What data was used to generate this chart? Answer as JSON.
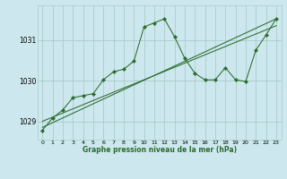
{
  "bg_color": "#cce8ee",
  "grid_color": "#aacccc",
  "line_color": "#2d6b2d",
  "xlabel": "Graphe pression niveau de la mer (hPa)",
  "ylim": [
    1028.55,
    1031.85
  ],
  "xlim": [
    -0.5,
    23.5
  ],
  "yticks": [
    1029,
    1030,
    1031
  ],
  "xticks": [
    0,
    1,
    2,
    3,
    4,
    5,
    6,
    7,
    8,
    9,
    10,
    11,
    12,
    13,
    14,
    15,
    16,
    17,
    18,
    19,
    20,
    21,
    22,
    23
  ],
  "series1_x": [
    0,
    1,
    2,
    3,
    4,
    5,
    6,
    7,
    8,
    9,
    10,
    11,
    12,
    13,
    14,
    15,
    16,
    17,
    18,
    19,
    20,
    21,
    22,
    23
  ],
  "series1_y": [
    1028.78,
    1029.08,
    1029.28,
    1029.58,
    1029.63,
    1029.68,
    1030.02,
    1030.22,
    1030.28,
    1030.48,
    1031.32,
    1031.42,
    1031.52,
    1031.08,
    1030.55,
    1030.18,
    1030.02,
    1030.02,
    1030.32,
    1030.02,
    1029.98,
    1030.75,
    1031.12,
    1031.52
  ],
  "trend1_x": [
    0,
    23
  ],
  "trend1_y": [
    1029.0,
    1031.35
  ],
  "trend2_x": [
    0,
    23
  ],
  "trend2_y": [
    1028.85,
    1031.52
  ]
}
